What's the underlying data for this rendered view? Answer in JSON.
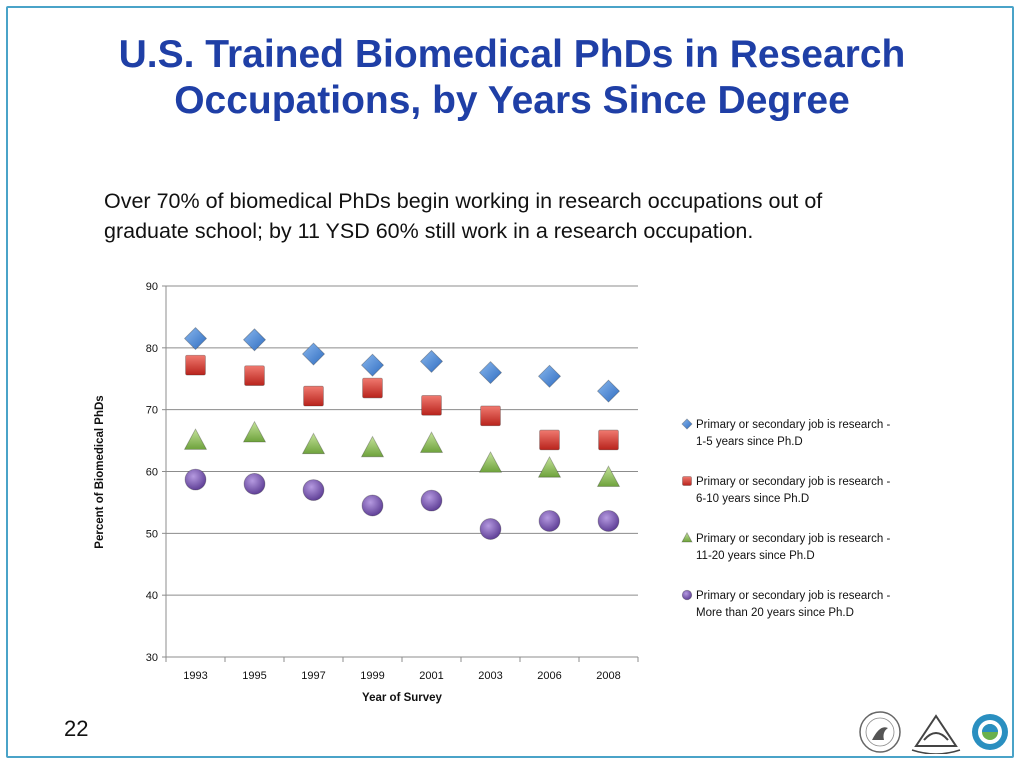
{
  "slide": {
    "title_line1": "U.S. Trained Biomedical PhDs in Research",
    "title_line2": "Occupations, by Years Since Degree",
    "subtitle_line1": "Over 70% of biomedical PhDs begin working in research occupations out of",
    "subtitle_line2": "graduate school; by 11 YSD 60% still work in a research occupation.",
    "slide_number": "22"
  },
  "chart_data": {
    "type": "scatter",
    "categories": [
      "1993",
      "1995",
      "1997",
      "1999",
      "2001",
      "2003",
      "2006",
      "2008"
    ],
    "xlabel": "Year of Survey",
    "ylabel": "Percent of Biomedical PhDs",
    "ylim": [
      30,
      90
    ],
    "yticks": [
      30,
      40,
      50,
      60,
      70,
      80,
      90
    ],
    "grid": true,
    "legend_position": "right",
    "series": [
      {
        "name_line1": "Primary or secondary job is research -",
        "name_line2": "1-5 years since Ph.D",
        "marker": "diamond",
        "color": "#4a86d4",
        "values": [
          81.5,
          81.3,
          79.0,
          77.2,
          77.8,
          76.0,
          75.4,
          73.0
        ]
      },
      {
        "name_line1": "Primary or secondary job is research -",
        "name_line2": "6-10 years since Ph.D",
        "marker": "square",
        "color": "#d63a2f",
        "values": [
          77.2,
          75.5,
          72.2,
          73.5,
          70.7,
          69.0,
          65.1,
          65.1
        ]
      },
      {
        "name_line1": "Primary or secondary job is research -",
        "name_line2": "11-20 years since Ph.D",
        "marker": "triangle",
        "color": "#8ec05a",
        "values": [
          65.0,
          66.2,
          64.3,
          63.8,
          64.5,
          61.3,
          60.5,
          59.0
        ]
      },
      {
        "name_line1": "Primary or secondary job is research -",
        "name_line2": "More than 20 years since Ph.D",
        "marker": "circle",
        "color": "#7a58b0",
        "values": [
          58.7,
          58.0,
          57.0,
          54.5,
          55.3,
          50.7,
          52.0,
          52.0
        ]
      }
    ]
  }
}
